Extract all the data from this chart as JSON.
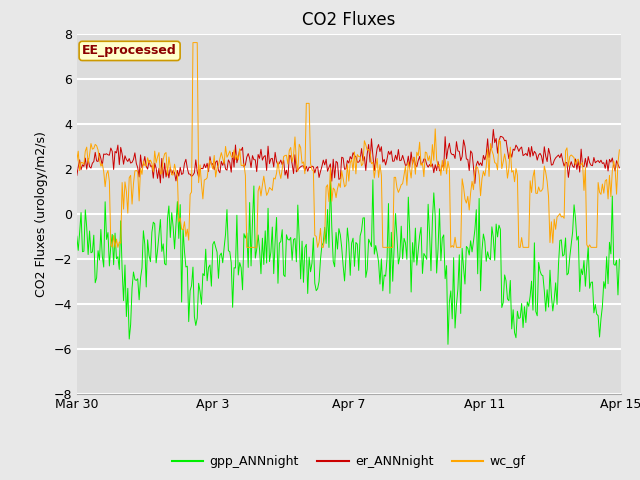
{
  "title": "CO2 Fluxes",
  "ylabel": "CO2 Fluxes (urology/m2/s)",
  "ylim": [
    -8,
    8
  ],
  "yticks": [
    -8,
    -6,
    -4,
    -2,
    0,
    2,
    4,
    6,
    8
  ],
  "background_color": "#e8e8e8",
  "plot_bg_color": "#dcdcdc",
  "line_colors": {
    "gpp": "#00ee00",
    "er": "#cc0000",
    "wc": "#ffa500"
  },
  "legend_labels": [
    "gpp_ANNnight",
    "er_ANNnight",
    "wc_gf"
  ],
  "annotation_text": "EE_processed",
  "annotation_bg": "#ffffcc",
  "annotation_border": "#cc9900",
  "annotation_text_color": "#8b0000",
  "seed": 42,
  "n_points": 384,
  "xtick_labels": [
    "Mar 30",
    "Apr 3",
    "Apr 7",
    "Apr 11",
    "Apr 15"
  ],
  "xtick_positions": [
    0,
    96,
    192,
    288,
    384
  ],
  "title_fontsize": 12,
  "axis_fontsize": 9,
  "tick_fontsize": 9,
  "legend_fontsize": 9
}
